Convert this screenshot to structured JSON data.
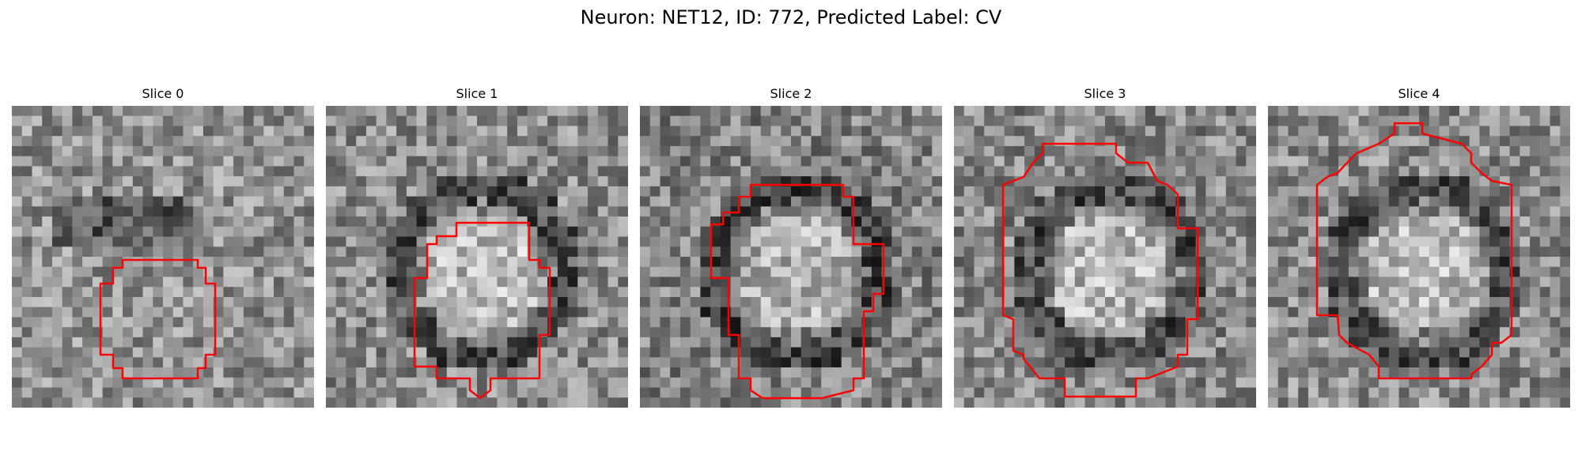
{
  "title": "Neuron: NET12, ID: 772, Predicted Label: CV",
  "contour_color": "#ff0000",
  "panels": [
    {
      "label": "Slice 0",
      "seed": 11,
      "shade_base": 145,
      "dark_ring": false,
      "bright_center": false
    },
    {
      "label": "Slice 1",
      "seed": 23,
      "shade_base": 140,
      "dark_ring": true,
      "bright_center": true
    },
    {
      "label": "Slice 2",
      "seed": 37,
      "shade_base": 130,
      "dark_ring": true,
      "bright_center": true
    },
    {
      "label": "Slice 3",
      "seed": 41,
      "shade_base": 135,
      "dark_ring": true,
      "bright_center": true
    },
    {
      "label": "Slice 4",
      "seed": 59,
      "shade_base": 140,
      "dark_ring": true,
      "bright_center": true
    }
  ]
}
